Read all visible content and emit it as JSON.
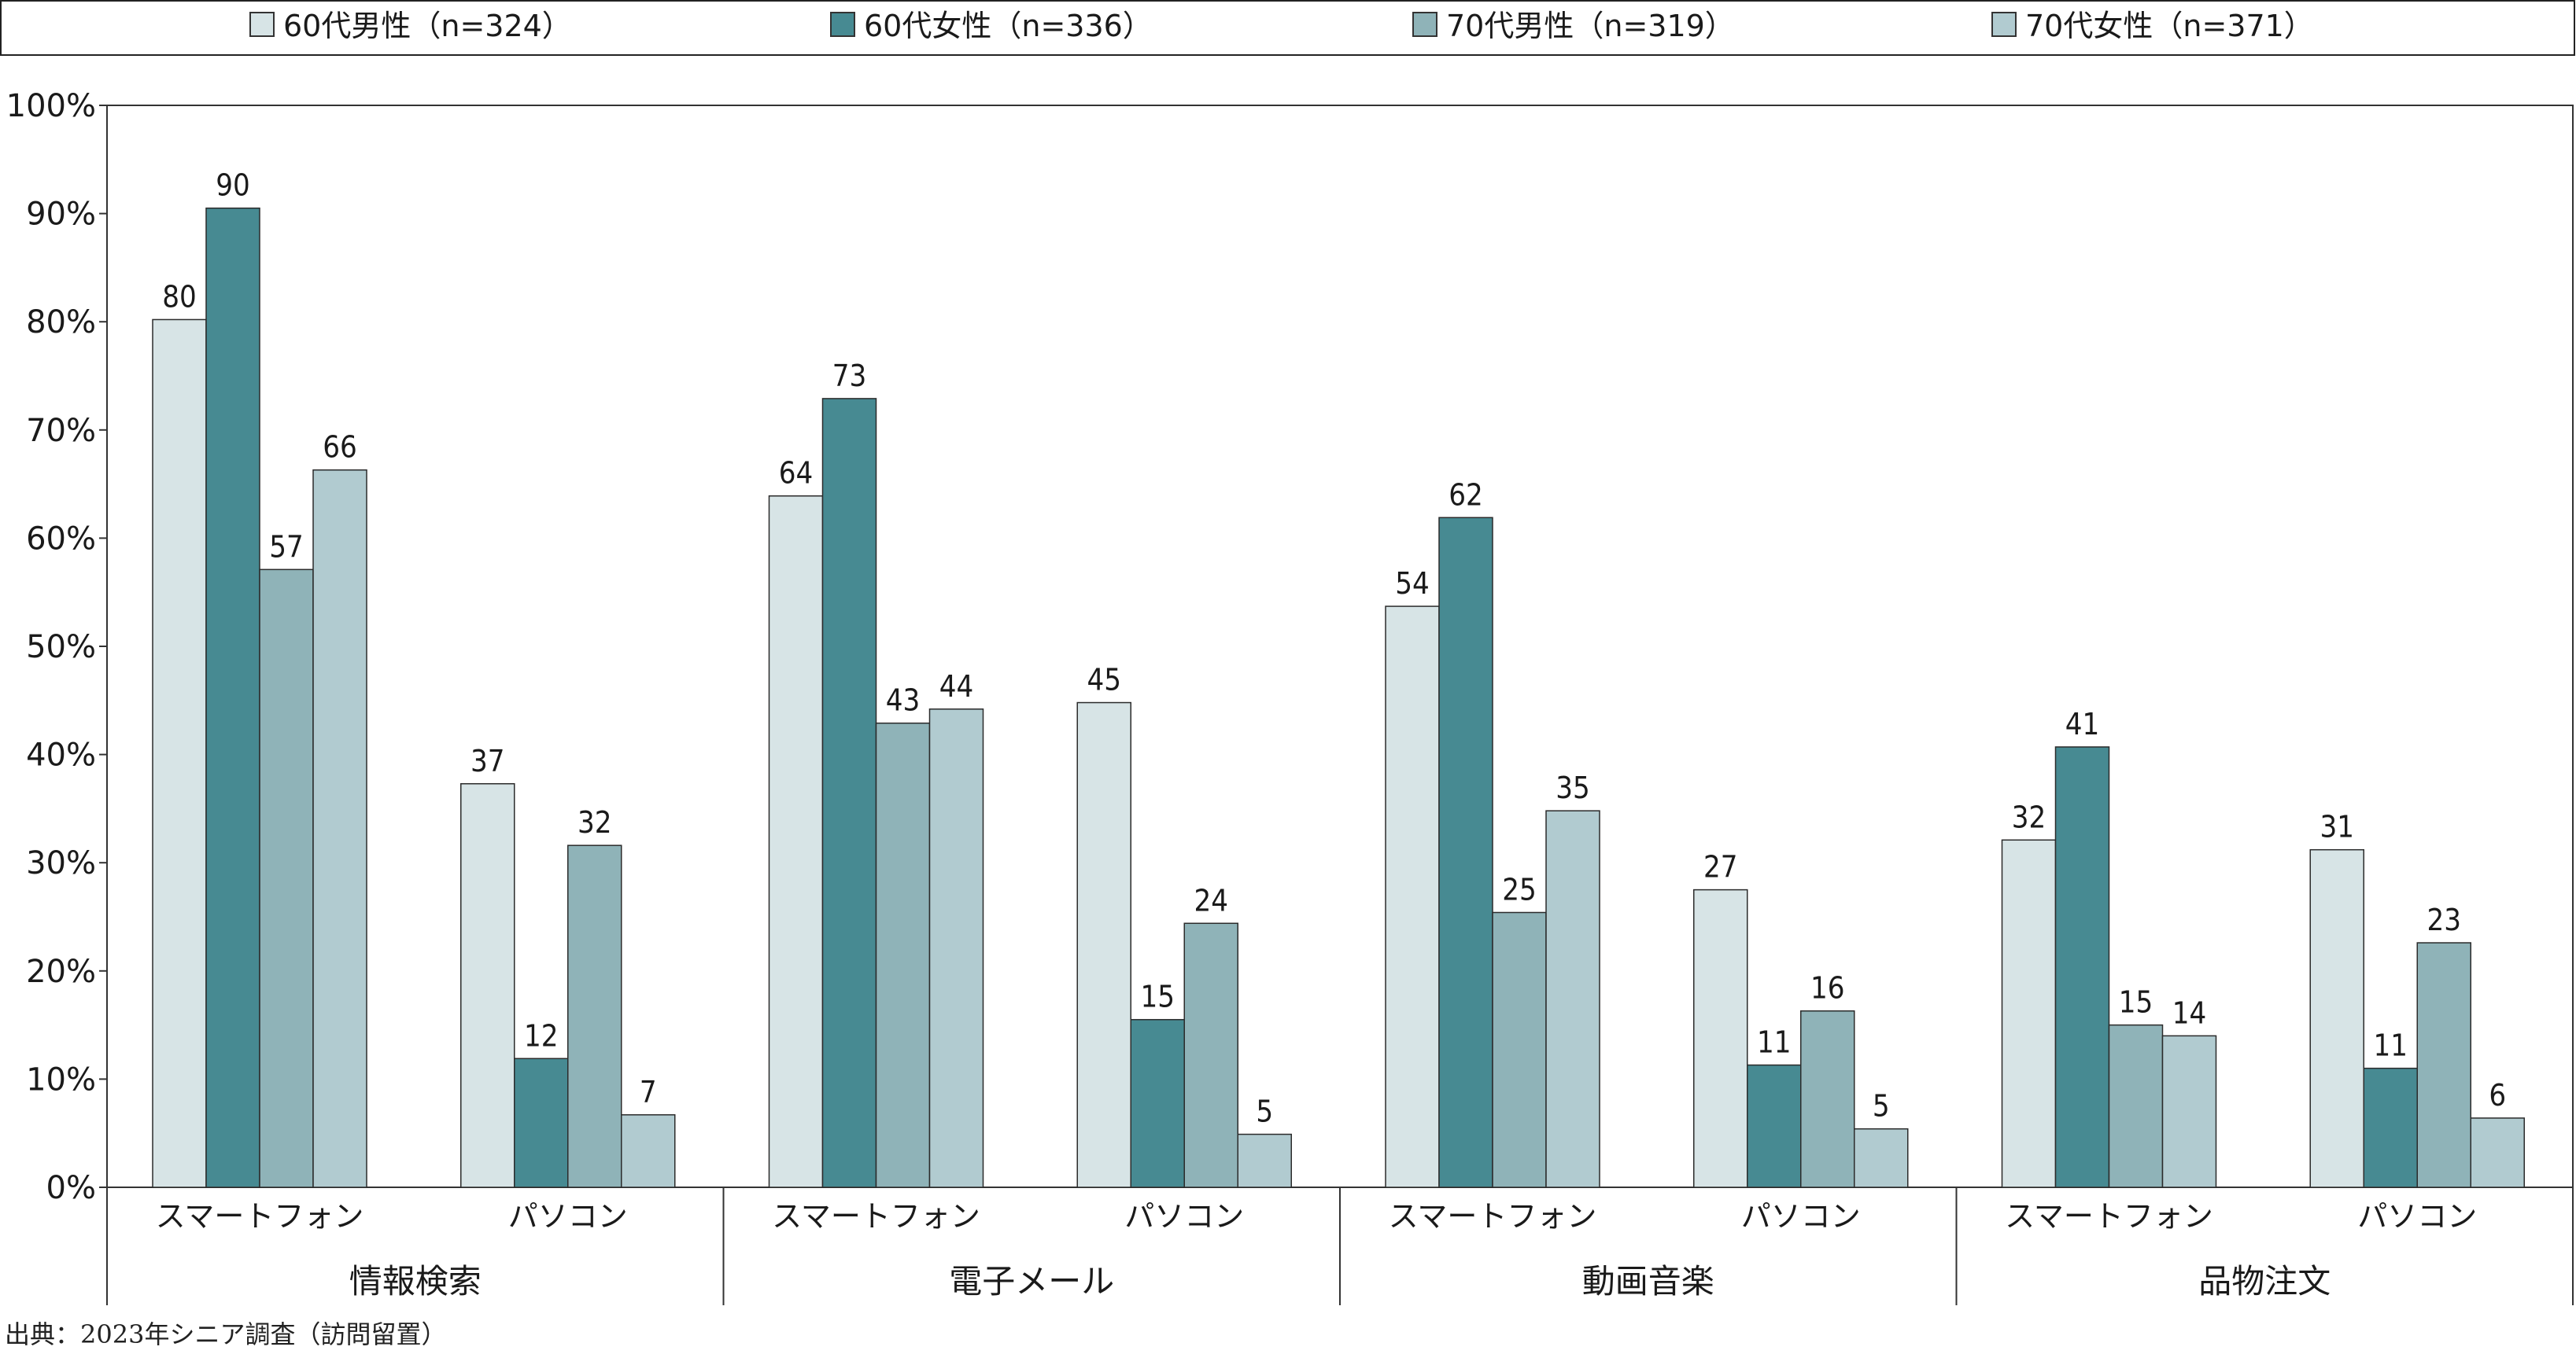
{
  "source_note": "出典：2023年シニア調査（訪問留置）",
  "chart_data": {
    "type": "bar",
    "groups": [
      {
        "label": "情報検索",
        "subcategories": [
          "スマートフォン",
          "パソコン"
        ]
      },
      {
        "label": "電子メール",
        "subcategories": [
          "スマートフォン",
          "パソコン"
        ]
      },
      {
        "label": "動画音楽",
        "subcategories": [
          "スマートフォン",
          "パソコン"
        ]
      },
      {
        "label": "品物注文",
        "subcategories": [
          "スマートフォン",
          "パソコン"
        ]
      }
    ],
    "categories": [
      "情報検索 スマートフォン",
      "情報検索 パソコン",
      "電子メール スマートフォン",
      "電子メール パソコン",
      "動画音楽 スマートフォン",
      "動画音楽 パソコン",
      "品物注文 スマートフォン",
      "品物注文 パソコン"
    ],
    "series": [
      {
        "name": "60代男性（n=324）",
        "color": "#d7e4e6",
        "values": [
          80.2,
          37.3,
          63.9,
          44.8,
          53.7,
          27.5,
          32.1,
          31.2
        ],
        "labels": [
          "80",
          "37",
          "64",
          "45",
          "54",
          "27",
          "32",
          "31"
        ]
      },
      {
        "name": "60代女性（n=336）",
        "color": "#478a92",
        "values": [
          90.5,
          11.9,
          72.9,
          15.5,
          61.9,
          11.3,
          40.7,
          11.0
        ],
        "labels": [
          "90",
          "12",
          "73",
          "15",
          "62",
          "11",
          "41",
          "11"
        ]
      },
      {
        "name": "70代男性（n=319）",
        "color": "#8fb3b8",
        "values": [
          57.1,
          31.6,
          42.9,
          24.4,
          25.4,
          16.3,
          15.0,
          22.6
        ],
        "labels": [
          "57",
          "32",
          "43",
          "24",
          "25",
          "16",
          "15",
          "23"
        ]
      },
      {
        "name": "70代女性（n=371）",
        "color": "#b1cbd0",
        "values": [
          66.3,
          6.7,
          44.2,
          4.9,
          34.8,
          5.4,
          14.0,
          6.4
        ],
        "labels": [
          "66",
          "7",
          "44",
          "5",
          "35",
          "5",
          "14",
          "6"
        ]
      }
    ],
    "y_ticks": [
      "0%",
      "10%",
      "20%",
      "30%",
      "40%",
      "50%",
      "60%",
      "70%",
      "80%",
      "90%",
      "100%"
    ],
    "ylim": [
      0,
      100
    ],
    "grid": false,
    "legend_position": "top"
  }
}
